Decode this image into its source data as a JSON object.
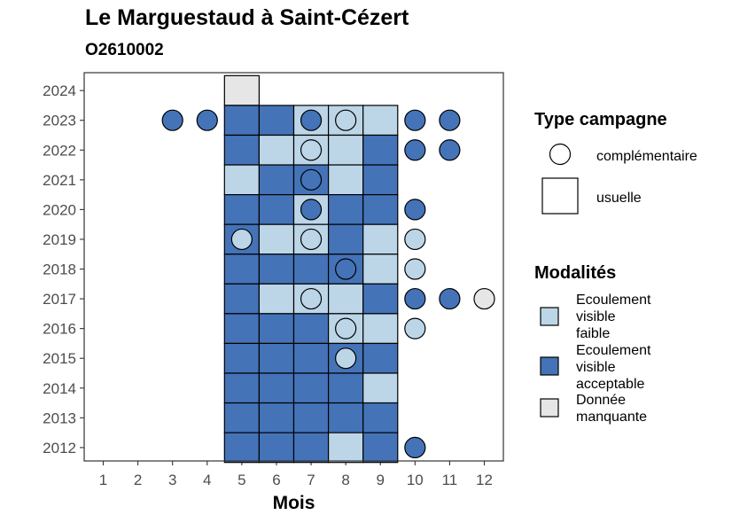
{
  "colors": {
    "Ecoulement visible faible": "#bcd6e8",
    "Ecoulement visible acceptable": "#4473b8",
    "Donnée manquante": "#e6e6e6"
  },
  "chart_data": {
    "type": "heatmap",
    "title": "Le Marguestaud à Saint-Cézert",
    "subtitle": "O2610002",
    "xlabel": "Mois",
    "ylabel": "",
    "x_ticks": [
      1,
      2,
      3,
      4,
      5,
      6,
      7,
      8,
      9,
      10,
      11,
      12
    ],
    "y_ticks": [
      2012,
      2013,
      2014,
      2015,
      2016,
      2017,
      2018,
      2019,
      2020,
      2021,
      2022,
      2023,
      2024
    ],
    "legend_type": {
      "title": "Type campagne",
      "items": [
        {
          "label": "complémentaire",
          "shape": "circle"
        },
        {
          "label": "usuelle",
          "shape": "square"
        }
      ]
    },
    "legend_modalites": {
      "title": "Modalités",
      "items": [
        {
          "label": [
            "Ecoulement",
            "visible",
            "faible"
          ],
          "category": "Ecoulement visible faible"
        },
        {
          "label": [
            "Ecoulement",
            "visible",
            "acceptable"
          ],
          "category": "Ecoulement visible acceptable"
        },
        {
          "label": [
            "Donnée",
            "manquante"
          ],
          "category": "Donnée manquante"
        }
      ]
    },
    "usuelle": [
      {
        "year": 2024,
        "month": 5,
        "cat": "Donnée manquante"
      },
      {
        "year": 2023,
        "month": 5,
        "cat": "Ecoulement visible acceptable"
      },
      {
        "year": 2023,
        "month": 6,
        "cat": "Ecoulement visible acceptable"
      },
      {
        "year": 2023,
        "month": 7,
        "cat": "Ecoulement visible faible"
      },
      {
        "year": 2023,
        "month": 8,
        "cat": "Ecoulement visible faible"
      },
      {
        "year": 2023,
        "month": 9,
        "cat": "Ecoulement visible faible"
      },
      {
        "year": 2022,
        "month": 5,
        "cat": "Ecoulement visible acceptable"
      },
      {
        "year": 2022,
        "month": 6,
        "cat": "Ecoulement visible faible"
      },
      {
        "year": 2022,
        "month": 7,
        "cat": "Ecoulement visible faible"
      },
      {
        "year": 2022,
        "month": 8,
        "cat": "Ecoulement visible faible"
      },
      {
        "year": 2022,
        "month": 9,
        "cat": "Ecoulement visible acceptable"
      },
      {
        "year": 2021,
        "month": 5,
        "cat": "Ecoulement visible faible"
      },
      {
        "year": 2021,
        "month": 6,
        "cat": "Ecoulement visible acceptable"
      },
      {
        "year": 2021,
        "month": 7,
        "cat": "Ecoulement visible acceptable"
      },
      {
        "year": 2021,
        "month": 8,
        "cat": "Ecoulement visible faible"
      },
      {
        "year": 2021,
        "month": 9,
        "cat": "Ecoulement visible acceptable"
      },
      {
        "year": 2020,
        "month": 5,
        "cat": "Ecoulement visible acceptable"
      },
      {
        "year": 2020,
        "month": 6,
        "cat": "Ecoulement visible acceptable"
      },
      {
        "year": 2020,
        "month": 7,
        "cat": "Ecoulement visible faible"
      },
      {
        "year": 2020,
        "month": 8,
        "cat": "Ecoulement visible acceptable"
      },
      {
        "year": 2020,
        "month": 9,
        "cat": "Ecoulement visible acceptable"
      },
      {
        "year": 2019,
        "month": 5,
        "cat": "Ecoulement visible acceptable"
      },
      {
        "year": 2019,
        "month": 6,
        "cat": "Ecoulement visible faible"
      },
      {
        "year": 2019,
        "month": 7,
        "cat": "Ecoulement visible faible"
      },
      {
        "year": 2019,
        "month": 8,
        "cat": "Ecoulement visible acceptable"
      },
      {
        "year": 2019,
        "month": 9,
        "cat": "Ecoulement visible faible"
      },
      {
        "year": 2018,
        "month": 5,
        "cat": "Ecoulement visible acceptable"
      },
      {
        "year": 2018,
        "month": 6,
        "cat": "Ecoulement visible acceptable"
      },
      {
        "year": 2018,
        "month": 7,
        "cat": "Ecoulement visible acceptable"
      },
      {
        "year": 2018,
        "month": 8,
        "cat": "Ecoulement visible acceptable"
      },
      {
        "year": 2018,
        "month": 9,
        "cat": "Ecoulement visible faible"
      },
      {
        "year": 2017,
        "month": 5,
        "cat": "Ecoulement visible acceptable"
      },
      {
        "year": 2017,
        "month": 6,
        "cat": "Ecoulement visible faible"
      },
      {
        "year": 2017,
        "month": 7,
        "cat": "Ecoulement visible faible"
      },
      {
        "year": 2017,
        "month": 8,
        "cat": "Ecoulement visible faible"
      },
      {
        "year": 2017,
        "month": 9,
        "cat": "Ecoulement visible acceptable"
      },
      {
        "year": 2016,
        "month": 5,
        "cat": "Ecoulement visible acceptable"
      },
      {
        "year": 2016,
        "month": 6,
        "cat": "Ecoulement visible acceptable"
      },
      {
        "year": 2016,
        "month": 7,
        "cat": "Ecoulement visible acceptable"
      },
      {
        "year": 2016,
        "month": 8,
        "cat": "Ecoulement visible faible"
      },
      {
        "year": 2016,
        "month": 9,
        "cat": "Ecoulement visible faible"
      },
      {
        "year": 2015,
        "month": 5,
        "cat": "Ecoulement visible acceptable"
      },
      {
        "year": 2015,
        "month": 6,
        "cat": "Ecoulement visible acceptable"
      },
      {
        "year": 2015,
        "month": 7,
        "cat": "Ecoulement visible acceptable"
      },
      {
        "year": 2015,
        "month": 8,
        "cat": "Ecoulement visible acceptable"
      },
      {
        "year": 2015,
        "month": 9,
        "cat": "Ecoulement visible acceptable"
      },
      {
        "year": 2014,
        "month": 5,
        "cat": "Ecoulement visible acceptable"
      },
      {
        "year": 2014,
        "month": 6,
        "cat": "Ecoulement visible acceptable"
      },
      {
        "year": 2014,
        "month": 7,
        "cat": "Ecoulement visible acceptable"
      },
      {
        "year": 2014,
        "month": 8,
        "cat": "Ecoulement visible acceptable"
      },
      {
        "year": 2014,
        "month": 9,
        "cat": "Ecoulement visible faible"
      },
      {
        "year": 2013,
        "month": 5,
        "cat": "Ecoulement visible acceptable"
      },
      {
        "year": 2013,
        "month": 6,
        "cat": "Ecoulement visible acceptable"
      },
      {
        "year": 2013,
        "month": 7,
        "cat": "Ecoulement visible acceptable"
      },
      {
        "year": 2013,
        "month": 8,
        "cat": "Ecoulement visible acceptable"
      },
      {
        "year": 2013,
        "month": 9,
        "cat": "Ecoulement visible acceptable"
      },
      {
        "year": 2012,
        "month": 5,
        "cat": "Ecoulement visible acceptable"
      },
      {
        "year": 2012,
        "month": 6,
        "cat": "Ecoulement visible acceptable"
      },
      {
        "year": 2012,
        "month": 7,
        "cat": "Ecoulement visible acceptable"
      },
      {
        "year": 2012,
        "month": 8,
        "cat": "Ecoulement visible faible"
      },
      {
        "year": 2012,
        "month": 9,
        "cat": "Ecoulement visible acceptable"
      }
    ],
    "complementaire": [
      {
        "year": 2023,
        "month": 3,
        "cat": "Ecoulement visible acceptable"
      },
      {
        "year": 2023,
        "month": 4,
        "cat": "Ecoulement visible acceptable"
      },
      {
        "year": 2023,
        "month": 7,
        "cat": "Ecoulement visible acceptable"
      },
      {
        "year": 2023,
        "month": 8,
        "cat": "Ecoulement visible faible"
      },
      {
        "year": 2023,
        "month": 10,
        "cat": "Ecoulement visible acceptable"
      },
      {
        "year": 2023,
        "month": 11,
        "cat": "Ecoulement visible acceptable"
      },
      {
        "year": 2022,
        "month": 7,
        "cat": "Ecoulement visible faible"
      },
      {
        "year": 2022,
        "month": 10,
        "cat": "Ecoulement visible acceptable"
      },
      {
        "year": 2022,
        "month": 11,
        "cat": "Ecoulement visible acceptable"
      },
      {
        "year": 2021,
        "month": 7,
        "cat": "Ecoulement visible acceptable"
      },
      {
        "year": 2020,
        "month": 7,
        "cat": "Ecoulement visible acceptable"
      },
      {
        "year": 2020,
        "month": 10,
        "cat": "Ecoulement visible acceptable"
      },
      {
        "year": 2019,
        "month": 5,
        "cat": "Ecoulement visible faible"
      },
      {
        "year": 2019,
        "month": 7,
        "cat": "Ecoulement visible faible"
      },
      {
        "year": 2019,
        "month": 10,
        "cat": "Ecoulement visible faible"
      },
      {
        "year": 2018,
        "month": 8,
        "cat": "Ecoulement visible acceptable"
      },
      {
        "year": 2018,
        "month": 10,
        "cat": "Ecoulement visible faible"
      },
      {
        "year": 2017,
        "month": 7,
        "cat": "Ecoulement visible faible"
      },
      {
        "year": 2017,
        "month": 10,
        "cat": "Ecoulement visible acceptable"
      },
      {
        "year": 2017,
        "month": 11,
        "cat": "Ecoulement visible acceptable"
      },
      {
        "year": 2017,
        "month": 12,
        "cat": "Donnée manquante"
      },
      {
        "year": 2016,
        "month": 8,
        "cat": "Ecoulement visible faible"
      },
      {
        "year": 2016,
        "month": 10,
        "cat": "Ecoulement visible faible"
      },
      {
        "year": 2015,
        "month": 8,
        "cat": "Ecoulement visible faible"
      },
      {
        "year": 2012,
        "month": 10,
        "cat": "Ecoulement visible acceptable"
      }
    ]
  }
}
